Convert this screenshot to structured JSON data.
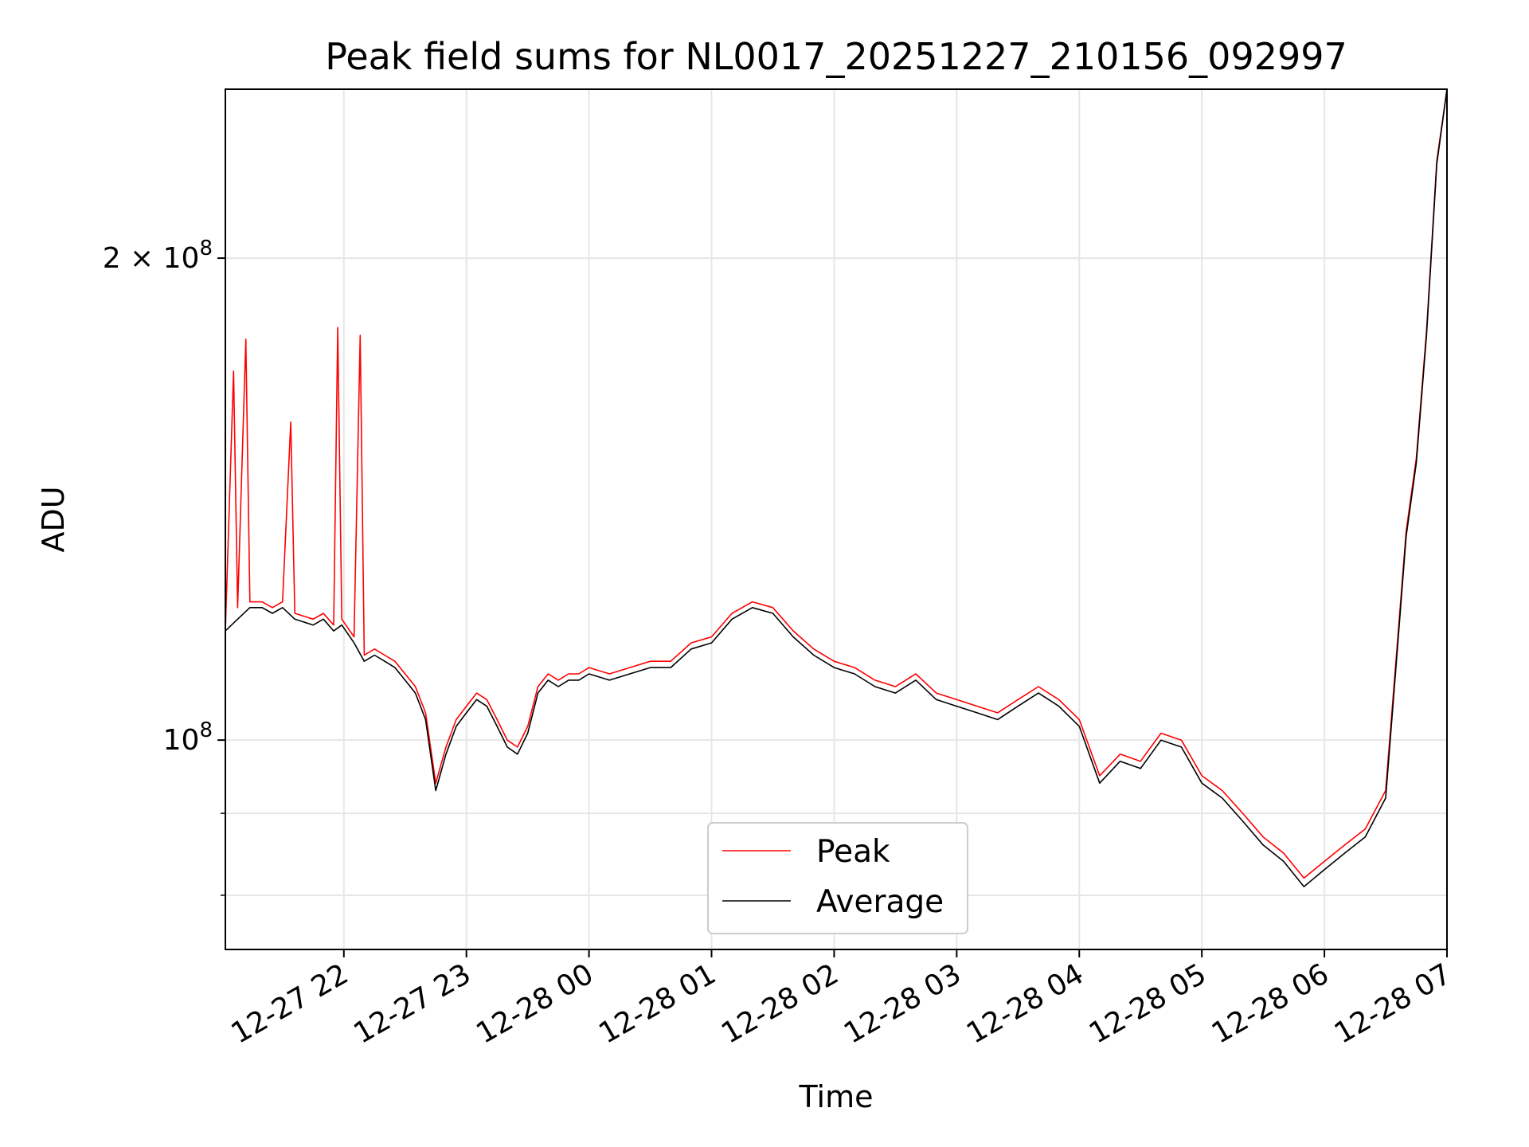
{
  "chart_data": {
    "type": "line",
    "title": "Peak field sums for NL0017_20251227_210156_092997",
    "xlabel": "Time",
    "ylabel": "ADU",
    "x_axis": {
      "scale": "time",
      "range": [
        "2025-12-27 21:02",
        "2025-12-28 07:00"
      ],
      "ticks": [
        "12-27 22",
        "12-27 23",
        "12-28 00",
        "12-28 01",
        "12-28 02",
        "12-28 03",
        "12-28 04",
        "12-28 05",
        "12-28 06",
        "12-28 07"
      ],
      "tick_rotation_deg": 30
    },
    "y_axis": {
      "scale": "log",
      "ylim": [
        74000000,
        255000000
      ],
      "major_tick_labels": [
        "2 × 10^8",
        "10^8"
      ],
      "minor_tick_values": [
        80000000,
        90000000
      ]
    },
    "grid": true,
    "legend_position": "lower center",
    "series": [
      {
        "name": "Peak",
        "color": "#ff0000",
        "points": [
          [
            "2025-12-27 21:02",
            117000000
          ],
          [
            "2025-12-27 21:06",
            170000000
          ],
          [
            "2025-12-27 21:08",
            121000000
          ],
          [
            "2025-12-27 21:12",
            178000000
          ],
          [
            "2025-12-27 21:14",
            122000000
          ],
          [
            "2025-12-27 21:20",
            122000000
          ],
          [
            "2025-12-27 21:25",
            121000000
          ],
          [
            "2025-12-27 21:30",
            122000000
          ],
          [
            "2025-12-27 21:34",
            158000000
          ],
          [
            "2025-12-27 21:36",
            120000000
          ],
          [
            "2025-12-27 21:45",
            119000000
          ],
          [
            "2025-12-27 21:50",
            120000000
          ],
          [
            "2025-12-27 21:55",
            118000000
          ],
          [
            "2025-12-27 21:57",
            181000000
          ],
          [
            "2025-12-27 21:59",
            119000000
          ],
          [
            "2025-12-27 22:05",
            116000000
          ],
          [
            "2025-12-27 22:08",
            179000000
          ],
          [
            "2025-12-27 22:10",
            113000000
          ],
          [
            "2025-12-27 22:15",
            114000000
          ],
          [
            "2025-12-27 22:20",
            113000000
          ],
          [
            "2025-12-27 22:25",
            112000000
          ],
          [
            "2025-12-27 22:30",
            110000000
          ],
          [
            "2025-12-27 22:35",
            108000000
          ],
          [
            "2025-12-27 22:40",
            104000000
          ],
          [
            "2025-12-27 22:45",
            94000000
          ],
          [
            "2025-12-27 22:50",
            99000000
          ],
          [
            "2025-12-27 22:55",
            103000000
          ],
          [
            "2025-12-27 23:00",
            105000000
          ],
          [
            "2025-12-27 23:05",
            107000000
          ],
          [
            "2025-12-27 23:10",
            106000000
          ],
          [
            "2025-12-27 23:15",
            103000000
          ],
          [
            "2025-12-27 23:20",
            100000000
          ],
          [
            "2025-12-27 23:25",
            99000000
          ],
          [
            "2025-12-27 23:30",
            102000000
          ],
          [
            "2025-12-27 23:35",
            108000000
          ],
          [
            "2025-12-27 23:40",
            110000000
          ],
          [
            "2025-12-27 23:45",
            109000000
          ],
          [
            "2025-12-27 23:50",
            110000000
          ],
          [
            "2025-12-27 23:55",
            110000000
          ],
          [
            "2025-12-28 00:00",
            111000000
          ],
          [
            "2025-12-28 00:10",
            110000000
          ],
          [
            "2025-12-28 00:20",
            111000000
          ],
          [
            "2025-12-28 00:30",
            112000000
          ],
          [
            "2025-12-28 00:40",
            112000000
          ],
          [
            "2025-12-28 00:50",
            115000000
          ],
          [
            "2025-12-28 01:00",
            116000000
          ],
          [
            "2025-12-28 01:10",
            120000000
          ],
          [
            "2025-12-28 01:20",
            122000000
          ],
          [
            "2025-12-28 01:30",
            121000000
          ],
          [
            "2025-12-28 01:40",
            117000000
          ],
          [
            "2025-12-28 01:50",
            114000000
          ],
          [
            "2025-12-28 02:00",
            112000000
          ],
          [
            "2025-12-28 02:10",
            111000000
          ],
          [
            "2025-12-28 02:20",
            109000000
          ],
          [
            "2025-12-28 02:30",
            108000000
          ],
          [
            "2025-12-28 02:40",
            110000000
          ],
          [
            "2025-12-28 02:50",
            107000000
          ],
          [
            "2025-12-28 03:00",
            106000000
          ],
          [
            "2025-12-28 03:10",
            105000000
          ],
          [
            "2025-12-28 03:20",
            104000000
          ],
          [
            "2025-12-28 03:30",
            106000000
          ],
          [
            "2025-12-28 03:40",
            108000000
          ],
          [
            "2025-12-28 03:50",
            106000000
          ],
          [
            "2025-12-28 04:00",
            103000000
          ],
          [
            "2025-12-28 04:10",
            95000000
          ],
          [
            "2025-12-28 04:20",
            98000000
          ],
          [
            "2025-12-28 04:30",
            97000000
          ],
          [
            "2025-12-28 04:40",
            101000000
          ],
          [
            "2025-12-28 04:50",
            100000000
          ],
          [
            "2025-12-28 05:00",
            95000000
          ],
          [
            "2025-12-28 05:10",
            93000000
          ],
          [
            "2025-12-28 05:20",
            90000000
          ],
          [
            "2025-12-28 05:30",
            87000000
          ],
          [
            "2025-12-28 05:40",
            85000000
          ],
          [
            "2025-12-28 05:50",
            82000000
          ],
          [
            "2025-12-28 06:00",
            84000000
          ],
          [
            "2025-12-28 06:10",
            86000000
          ],
          [
            "2025-12-28 06:20",
            88000000
          ],
          [
            "2025-12-28 06:30",
            93000000
          ],
          [
            "2025-12-28 06:35",
            112000000
          ],
          [
            "2025-12-28 06:40",
            135000000
          ],
          [
            "2025-12-28 06:45",
            150000000
          ],
          [
            "2025-12-28 06:50",
            180000000
          ],
          [
            "2025-12-28 06:55",
            230000000
          ],
          [
            "2025-12-28 07:00",
            255000000
          ]
        ]
      },
      {
        "name": "Average",
        "color": "#000000",
        "points": [
          [
            "2025-12-27 21:02",
            117000000
          ],
          [
            "2025-12-27 21:08",
            119000000
          ],
          [
            "2025-12-27 21:14",
            121000000
          ],
          [
            "2025-12-27 21:20",
            121000000
          ],
          [
            "2025-12-27 21:25",
            120000000
          ],
          [
            "2025-12-27 21:30",
            121000000
          ],
          [
            "2025-12-27 21:36",
            119000000
          ],
          [
            "2025-12-27 21:45",
            118000000
          ],
          [
            "2025-12-27 21:50",
            119000000
          ],
          [
            "2025-12-27 21:55",
            117000000
          ],
          [
            "2025-12-27 21:59",
            118000000
          ],
          [
            "2025-12-27 22:05",
            115000000
          ],
          [
            "2025-12-27 22:10",
            112000000
          ],
          [
            "2025-12-27 22:15",
            113000000
          ],
          [
            "2025-12-27 22:20",
            112000000
          ],
          [
            "2025-12-27 22:25",
            111000000
          ],
          [
            "2025-12-27 22:30",
            109000000
          ],
          [
            "2025-12-27 22:35",
            107000000
          ],
          [
            "2025-12-27 22:40",
            103000000
          ],
          [
            "2025-12-27 22:45",
            93000000
          ],
          [
            "2025-12-27 22:50",
            98000000
          ],
          [
            "2025-12-27 22:55",
            102000000
          ],
          [
            "2025-12-27 23:00",
            104000000
          ],
          [
            "2025-12-27 23:05",
            106000000
          ],
          [
            "2025-12-27 23:10",
            105000000
          ],
          [
            "2025-12-27 23:15",
            102000000
          ],
          [
            "2025-12-27 23:20",
            99000000
          ],
          [
            "2025-12-27 23:25",
            98000000
          ],
          [
            "2025-12-27 23:30",
            101000000
          ],
          [
            "2025-12-27 23:35",
            107000000
          ],
          [
            "2025-12-27 23:40",
            109000000
          ],
          [
            "2025-12-27 23:45",
            108000000
          ],
          [
            "2025-12-27 23:50",
            109000000
          ],
          [
            "2025-12-27 23:55",
            109000000
          ],
          [
            "2025-12-28 00:00",
            110000000
          ],
          [
            "2025-12-28 00:10",
            109000000
          ],
          [
            "2025-12-28 00:20",
            110000000
          ],
          [
            "2025-12-28 00:30",
            111000000
          ],
          [
            "2025-12-28 00:40",
            111000000
          ],
          [
            "2025-12-28 00:50",
            114000000
          ],
          [
            "2025-12-28 01:00",
            115000000
          ],
          [
            "2025-12-28 01:10",
            119000000
          ],
          [
            "2025-12-28 01:20",
            121000000
          ],
          [
            "2025-12-28 01:30",
            120000000
          ],
          [
            "2025-12-28 01:40",
            116000000
          ],
          [
            "2025-12-28 01:50",
            113000000
          ],
          [
            "2025-12-28 02:00",
            111000000
          ],
          [
            "2025-12-28 02:10",
            110000000
          ],
          [
            "2025-12-28 02:20",
            108000000
          ],
          [
            "2025-12-28 02:30",
            107000000
          ],
          [
            "2025-12-28 02:40",
            109000000
          ],
          [
            "2025-12-28 02:50",
            106000000
          ],
          [
            "2025-12-28 03:00",
            105000000
          ],
          [
            "2025-12-28 03:10",
            104000000
          ],
          [
            "2025-12-28 03:20",
            103000000
          ],
          [
            "2025-12-28 03:30",
            105000000
          ],
          [
            "2025-12-28 03:40",
            107000000
          ],
          [
            "2025-12-28 03:50",
            105000000
          ],
          [
            "2025-12-28 04:00",
            102000000
          ],
          [
            "2025-12-28 04:10",
            94000000
          ],
          [
            "2025-12-28 04:20",
            97000000
          ],
          [
            "2025-12-28 04:30",
            96000000
          ],
          [
            "2025-12-28 04:40",
            100000000
          ],
          [
            "2025-12-28 04:50",
            99000000
          ],
          [
            "2025-12-28 05:00",
            94000000
          ],
          [
            "2025-12-28 05:10",
            92000000
          ],
          [
            "2025-12-28 05:20",
            89000000
          ],
          [
            "2025-12-28 05:30",
            86000000
          ],
          [
            "2025-12-28 05:40",
            84000000
          ],
          [
            "2025-12-28 05:50",
            81000000
          ],
          [
            "2025-12-28 06:00",
            83000000
          ],
          [
            "2025-12-28 06:10",
            85000000
          ],
          [
            "2025-12-28 06:20",
            87000000
          ],
          [
            "2025-12-28 06:30",
            92000000
          ],
          [
            "2025-12-28 06:35",
            111000000
          ],
          [
            "2025-12-28 06:40",
            134000000
          ],
          [
            "2025-12-28 06:45",
            149000000
          ],
          [
            "2025-12-28 06:50",
            179000000
          ],
          [
            "2025-12-28 06:55",
            229000000
          ],
          [
            "2025-12-28 07:00",
            255000000
          ]
        ]
      }
    ]
  }
}
